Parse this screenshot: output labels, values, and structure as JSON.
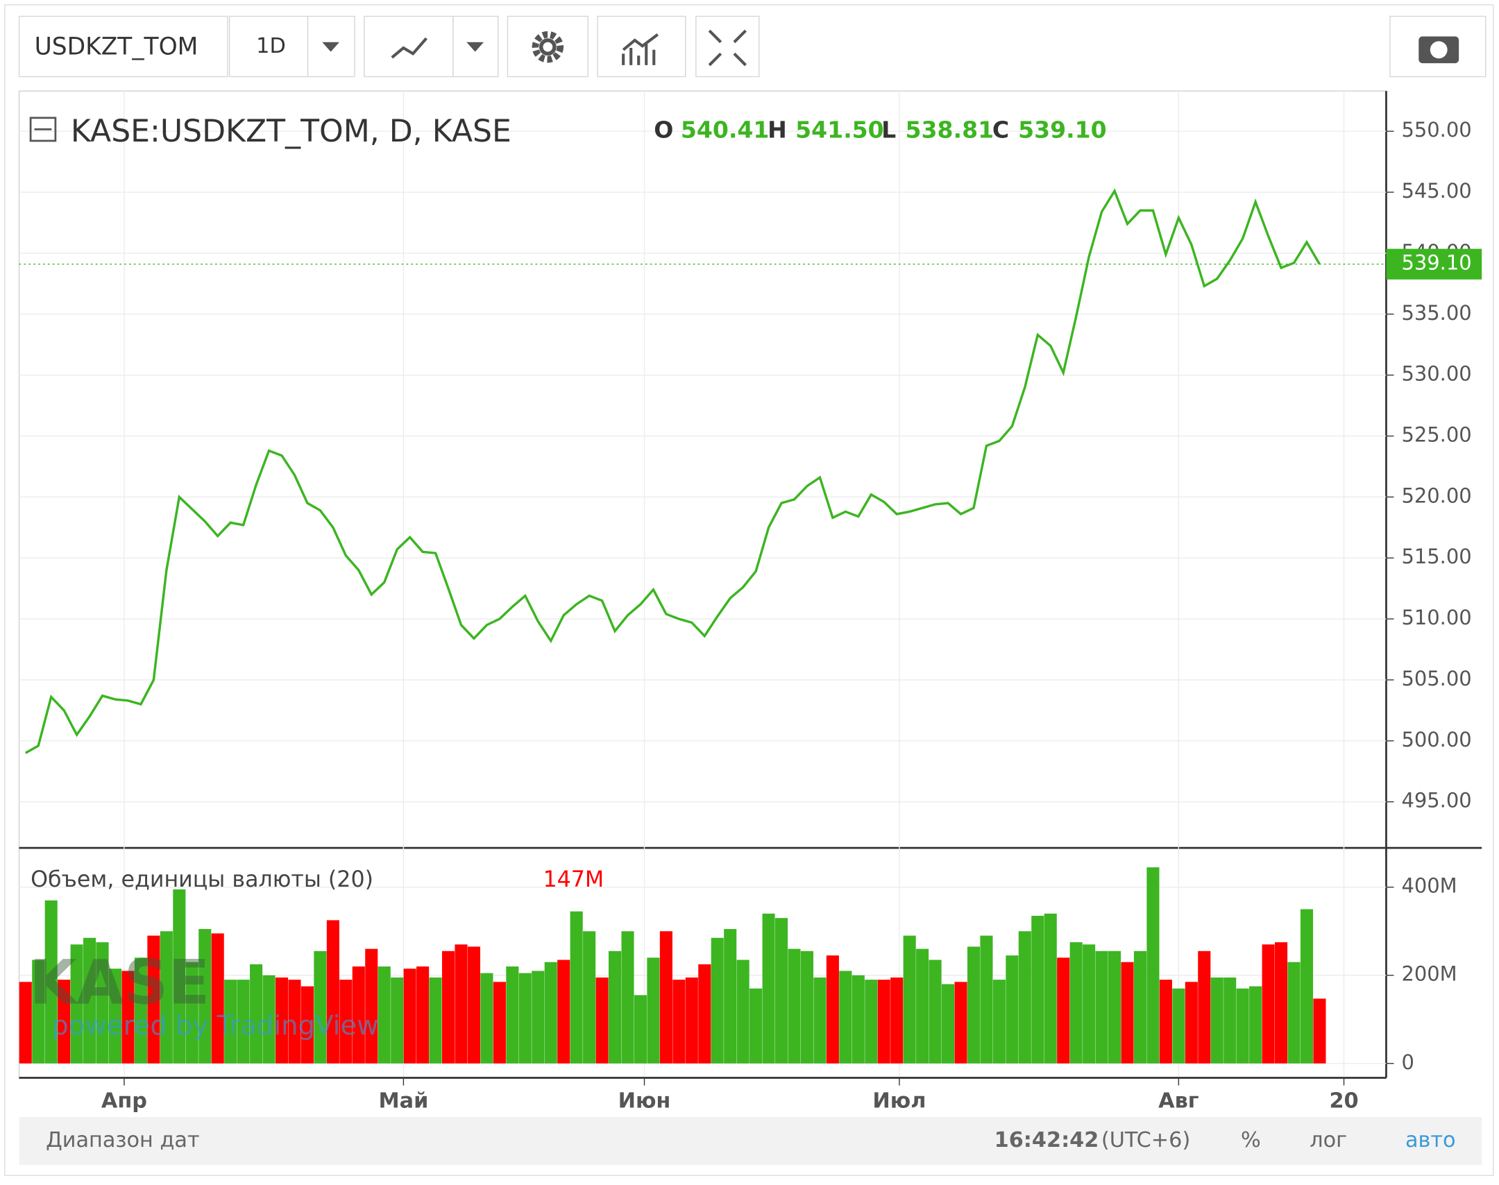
{
  "toolbar": {
    "symbol": "USDKZT_TOM",
    "interval": "1D"
  },
  "legend": {
    "open_key": "O",
    "open": "540.41",
    "high_key": "H",
    "high": "541.50",
    "low_key": "L",
    "low": "538.81",
    "close_key": "C",
    "close": "539.10"
  },
  "watermark": {
    "logo": "KASE",
    "powered": "powered by TradingView"
  },
  "footer": {
    "range": "Диапазон дат",
    "time": "16:42:42",
    "tz": "(UTC+6)",
    "percent": "%",
    "log": "лог",
    "auto": "авто"
  },
  "chart_data": [
    {
      "type": "line",
      "title": "KASE:USDKZT_TOM, D, KASE",
      "color": "#3cb521",
      "grid": true,
      "x": [
        0,
        1,
        2,
        3,
        4,
        5,
        6,
        7,
        8,
        9,
        10,
        11,
        12,
        13,
        14,
        15,
        16,
        17,
        18,
        19,
        20,
        21,
        22,
        23,
        24,
        25,
        26,
        27,
        28,
        29,
        30,
        31,
        32,
        33,
        34,
        35,
        36,
        37,
        38,
        39,
        40,
        41,
        42,
        43,
        44,
        45,
        46,
        47,
        48,
        49,
        50,
        51,
        52,
        53,
        54,
        55,
        56,
        57,
        58,
        59,
        60,
        61,
        62,
        63,
        64,
        65,
        66,
        67,
        68,
        69,
        70,
        71,
        72,
        73,
        74,
        75,
        76,
        77,
        78,
        79,
        80,
        81,
        82,
        83,
        84,
        85,
        86,
        87,
        88,
        89,
        90,
        91,
        92,
        93,
        94,
        95,
        96,
        97,
        98,
        99,
        100,
        101
      ],
      "values": [
        499,
        499.6,
        503.6,
        502.5,
        500.5,
        502,
        503.7,
        503.4,
        503.3,
        503,
        505,
        514,
        520,
        519,
        518,
        516.8,
        517.9,
        517.7,
        521,
        523.8,
        523.4,
        521.8,
        519.5,
        518.9,
        517.5,
        515.2,
        514,
        512,
        513,
        515.7,
        516.7,
        515.5,
        515.4,
        512.5,
        509.5,
        508.4,
        509.5,
        510,
        511,
        511.9,
        509.8,
        508.2,
        510.3,
        511.2,
        511.9,
        511.5,
        509,
        510.3,
        511.2,
        512.4,
        510.4,
        510,
        509.7,
        508.6,
        510.2,
        511.7,
        512.6,
        513.9,
        517.5,
        519.5,
        519.8,
        520.9,
        521.6,
        518.3,
        518.8,
        518.4,
        520.2,
        519.6,
        518.6,
        518.8,
        519.1,
        519.4,
        519.5,
        518.6,
        519.1,
        524.2,
        524.6,
        525.8,
        529,
        533.3,
        532.4,
        530.2,
        534.8,
        539.7,
        543.4,
        545.1,
        542.4,
        543.5,
        543.5,
        539.9,
        542.9,
        540.7,
        537.3,
        537.9,
        539.4,
        541.2,
        544.2,
        541.4,
        538.8,
        539.2,
        540.9,
        539.1
      ],
      "last": {
        "value": 539.1,
        "label": "539.10"
      },
      "ylim": [
        491.3,
        553.3
      ],
      "yticks": [
        {
          "value": 495,
          "label": "495.00"
        },
        {
          "value": 500,
          "label": "500.00"
        },
        {
          "value": 505,
          "label": "505.00"
        },
        {
          "value": 510,
          "label": "510.00"
        },
        {
          "value": 515,
          "label": "515.00"
        },
        {
          "value": 520,
          "label": "520.00"
        },
        {
          "value": 525,
          "label": "525.00"
        },
        {
          "value": 530,
          "label": "530.00"
        },
        {
          "value": 535,
          "label": "535.00"
        },
        {
          "value": 540,
          "label": "540.00"
        },
        {
          "value": 545,
          "label": "545.00"
        },
        {
          "value": 550,
          "label": "550.00"
        }
      ],
      "xlim": [
        -0.5,
        106.2
      ],
      "xticks": [
        {
          "value": 7.7,
          "label": "Апр"
        },
        {
          "value": 29.5,
          "label": "Май"
        },
        {
          "value": 48.3,
          "label": "Июн"
        },
        {
          "value": 68.2,
          "label": "Июл"
        },
        {
          "value": 90,
          "label": "Авг"
        },
        {
          "value": 102.9,
          "label": "20"
        }
      ]
    },
    {
      "type": "bar",
      "title": "Объем, единицы валюты (20)",
      "grid": true,
      "x": [
        0,
        1,
        2,
        3,
        4,
        5,
        6,
        7,
        8,
        9,
        10,
        11,
        12,
        13,
        14,
        15,
        16,
        17,
        18,
        19,
        20,
        21,
        22,
        23,
        24,
        25,
        26,
        27,
        28,
        29,
        30,
        31,
        32,
        33,
        34,
        35,
        36,
        37,
        38,
        39,
        40,
        41,
        42,
        43,
        44,
        45,
        46,
        47,
        48,
        49,
        50,
        51,
        52,
        53,
        54,
        55,
        56,
        57,
        58,
        59,
        60,
        61,
        62,
        63,
        64,
        65,
        66,
        67,
        68,
        69,
        70,
        71,
        72,
        73,
        74,
        75,
        76,
        77,
        78,
        79,
        80,
        81,
        82,
        83,
        84,
        85,
        86,
        87,
        88,
        89,
        90,
        91,
        92,
        93,
        94,
        95,
        96,
        97,
        98,
        99,
        100,
        101
      ],
      "values": [
        185,
        235,
        370,
        190,
        270,
        285,
        275,
        215,
        210,
        240,
        290,
        300,
        395,
        230,
        305,
        295,
        190,
        190,
        225,
        200,
        195,
        190,
        175,
        255,
        325,
        190,
        220,
        260,
        220,
        195,
        215,
        220,
        195,
        255,
        270,
        265,
        205,
        185,
        220,
        205,
        210,
        230,
        235,
        345,
        300,
        195,
        255,
        300,
        155,
        240,
        300,
        190,
        195,
        225,
        285,
        305,
        235,
        170,
        340,
        330,
        260,
        255,
        195,
        245,
        210,
        200,
        190,
        190,
        195,
        290,
        260,
        235,
        180,
        185,
        265,
        290,
        190,
        245,
        300,
        335,
        340,
        240,
        275,
        270,
        255,
        255,
        230,
        255,
        445,
        190,
        170,
        185,
        255,
        195,
        195,
        170,
        175,
        270,
        275,
        230,
        350,
        147
      ],
      "colors": [
        "#ff0000",
        "#3cb521",
        "#3cb521",
        "#ff0000",
        "#3cb521",
        "#3cb521",
        "#3cb521",
        "#3cb521",
        "#ff0000",
        "#3cb521",
        "#ff0000",
        "#3cb521",
        "#3cb521",
        "#3cb521",
        "#3cb521",
        "#ff0000",
        "#3cb521",
        "#3cb521",
        "#3cb521",
        "#3cb521",
        "#ff0000",
        "#ff0000",
        "#ff0000",
        "#3cb521",
        "#ff0000",
        "#ff0000",
        "#ff0000",
        "#ff0000",
        "#3cb521",
        "#3cb521",
        "#ff0000",
        "#ff0000",
        "#3cb521",
        "#ff0000",
        "#ff0000",
        "#ff0000",
        "#3cb521",
        "#ff0000",
        "#3cb521",
        "#3cb521",
        "#3cb521",
        "#3cb521",
        "#ff0000",
        "#3cb521",
        "#3cb521",
        "#ff0000",
        "#3cb521",
        "#3cb521",
        "#3cb521",
        "#3cb521",
        "#ff0000",
        "#ff0000",
        "#ff0000",
        "#ff0000",
        "#3cb521",
        "#3cb521",
        "#3cb521",
        "#3cb521",
        "#3cb521",
        "#3cb521",
        "#3cb521",
        "#3cb521",
        "#3cb521",
        "#ff0000",
        "#3cb521",
        "#3cb521",
        "#3cb521",
        "#ff0000",
        "#ff0000",
        "#3cb521",
        "#3cb521",
        "#3cb521",
        "#3cb521",
        "#ff0000",
        "#3cb521",
        "#3cb521",
        "#3cb521",
        "#3cb521",
        "#3cb521",
        "#3cb521",
        "#3cb521",
        "#ff0000",
        "#3cb521",
        "#3cb521",
        "#3cb521",
        "#3cb521",
        "#ff0000",
        "#3cb521",
        "#3cb521",
        "#ff0000",
        "#3cb521",
        "#ff0000",
        "#ff0000",
        "#3cb521",
        "#3cb521",
        "#3cb521",
        "#3cb521",
        "#ff0000",
        "#ff0000",
        "#3cb521",
        "#3cb521",
        "#ff0000"
      ],
      "current": {
        "value": 147,
        "label": "147M"
      },
      "ylim": [
        0,
        487
      ],
      "yticks": [
        {
          "value": 0,
          "label": "0"
        },
        {
          "value": 200,
          "label": "200M"
        },
        {
          "value": 400,
          "label": "400M"
        }
      ],
      "xlim": [
        -0.5,
        106.2
      ]
    }
  ]
}
